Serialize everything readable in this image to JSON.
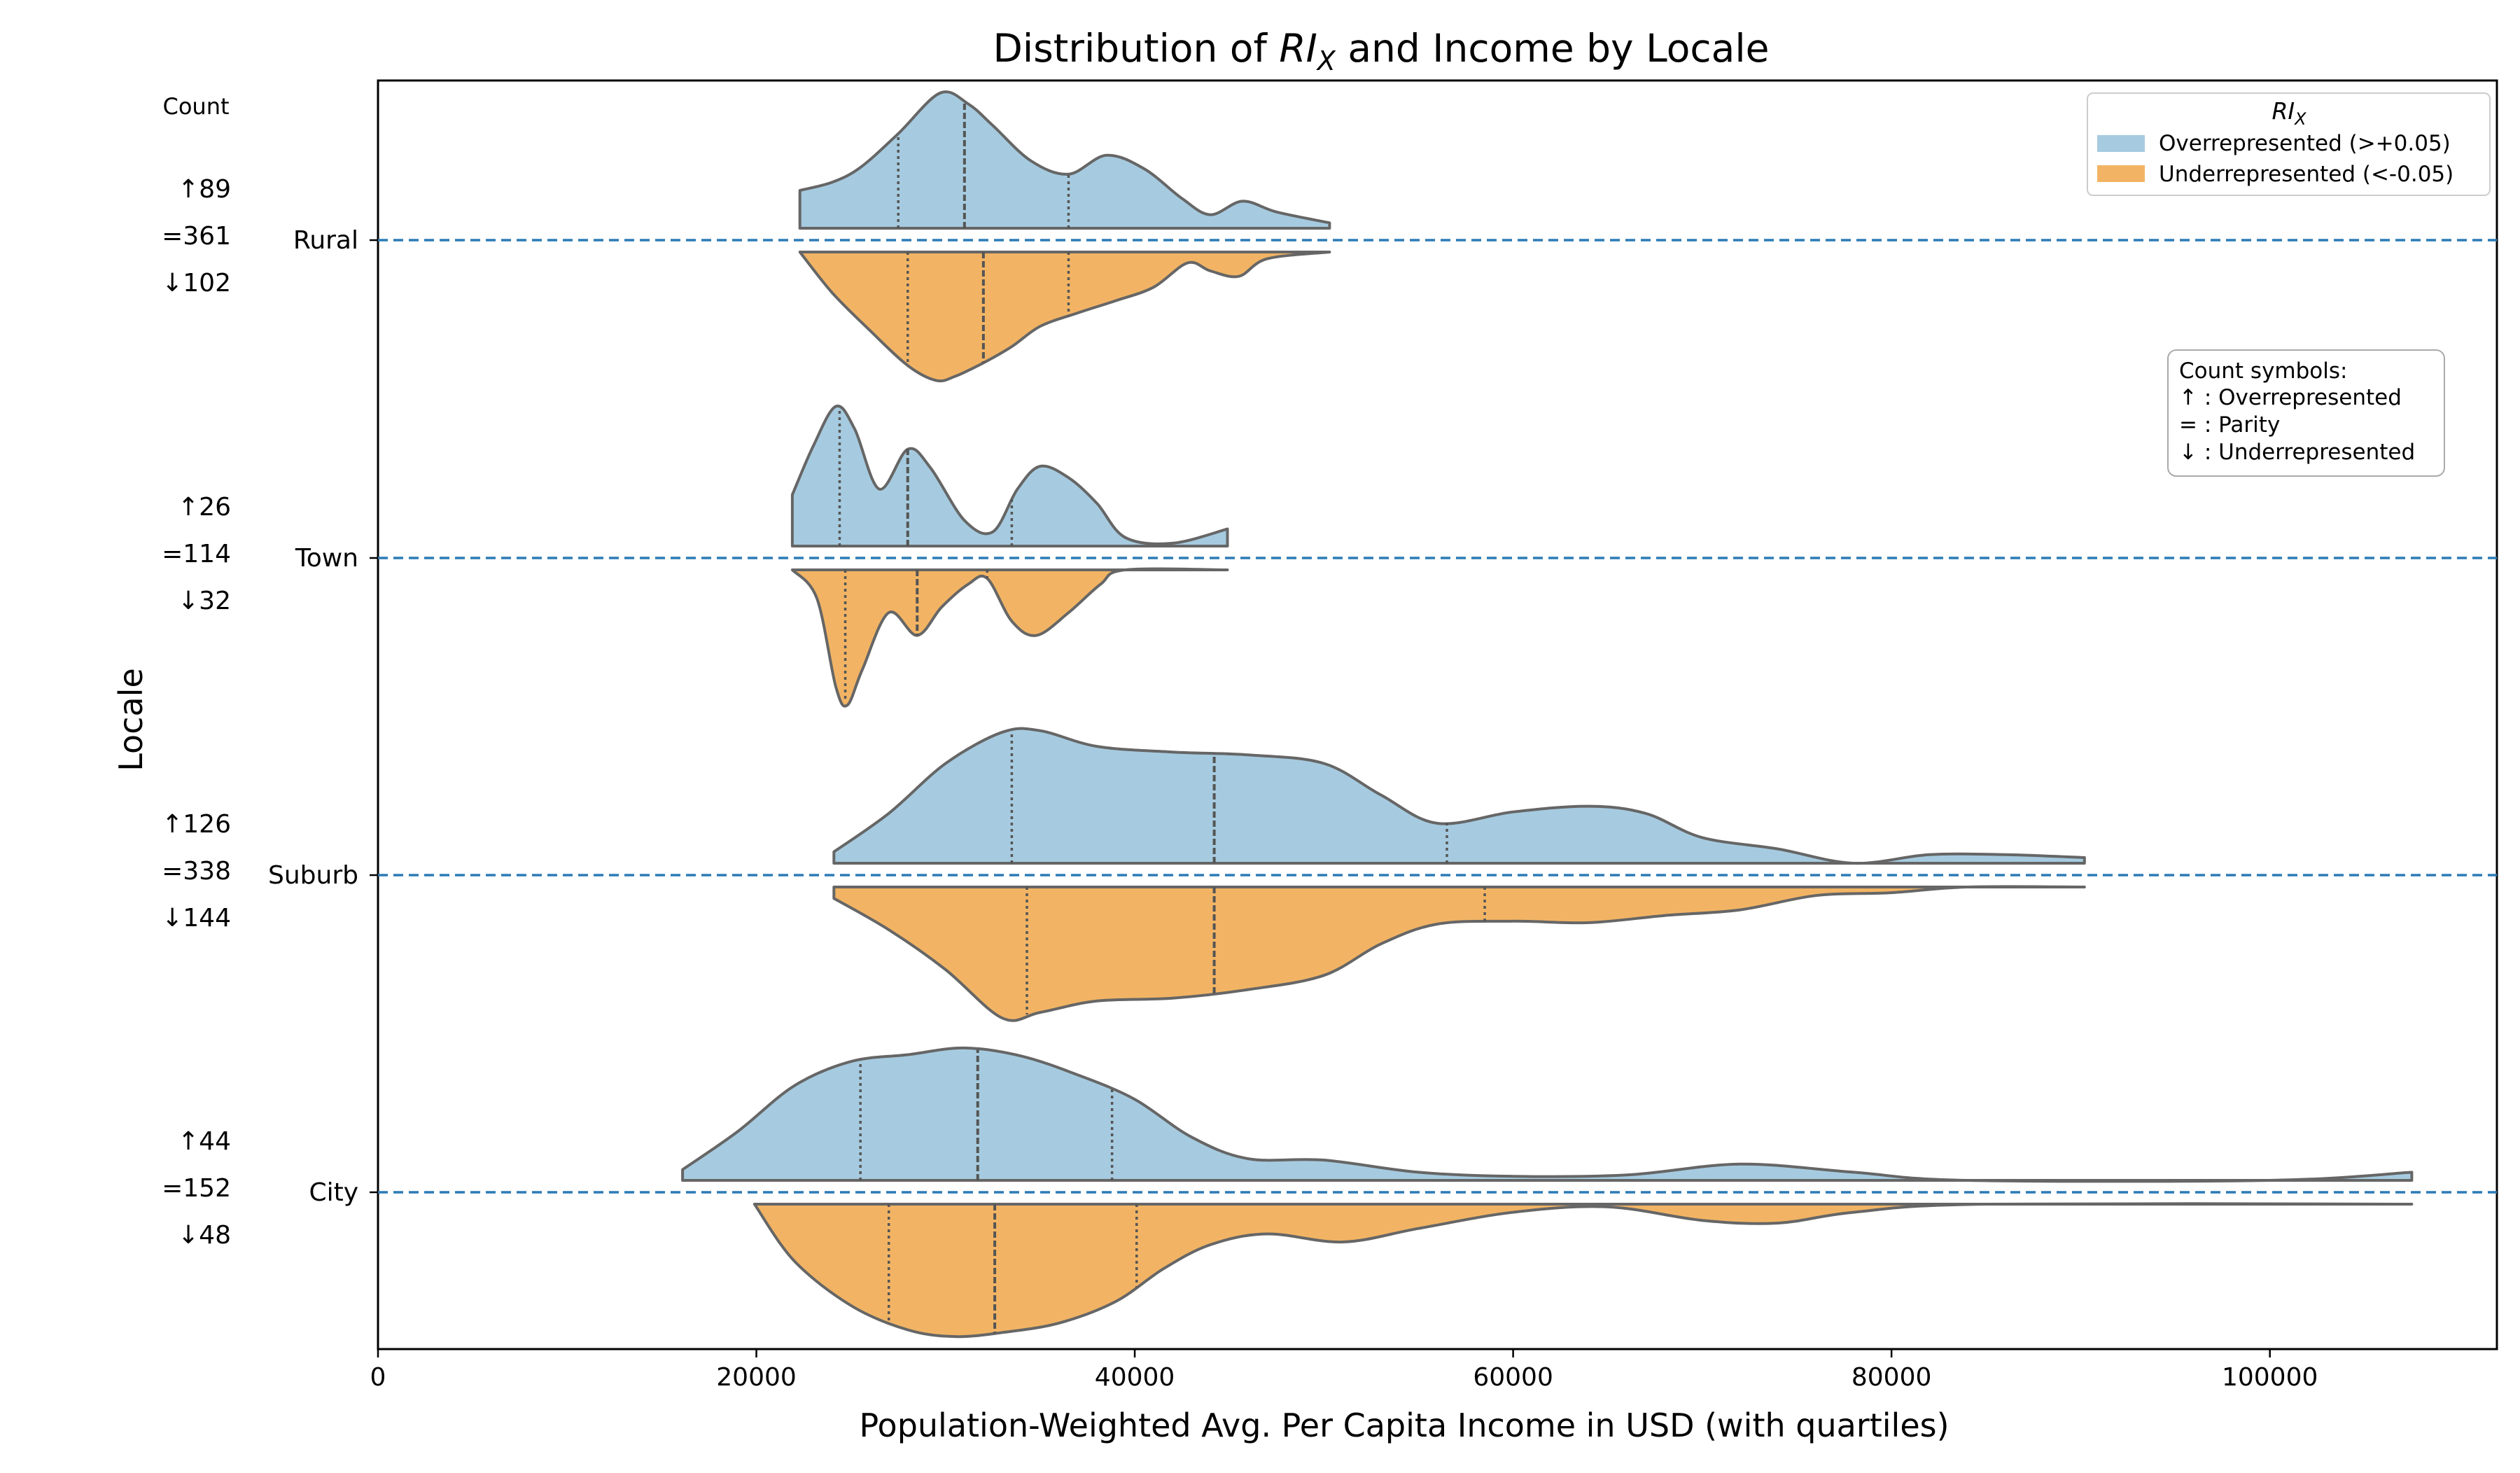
{
  "chart_data": {
    "type": "violin",
    "title_prefix": "Distribution of ",
    "title_symbol": "RI",
    "title_subscript": "X",
    "title_suffix": " and Income by Locale",
    "xlabel": "Population-Weighted Avg. Per Capita Income in USD (with quartiles)",
    "ylabel": "Locale",
    "xlim": [
      0,
      112000
    ],
    "x_ticks": [
      0,
      20000,
      40000,
      60000,
      80000,
      100000
    ],
    "x_tick_labels": [
      "0",
      "20000",
      "40000",
      "60000",
      "80000",
      "100000"
    ],
    "counts_header": "Count",
    "legend": {
      "title_symbol": "RI",
      "title_subscript": "X",
      "placement": "top-right",
      "entries": [
        {
          "label": "Overrepresented (>+0.05)",
          "color": "#a6cbe0"
        },
        {
          "label": "Underrepresented (<-0.05)",
          "color": "#f2b464"
        }
      ]
    },
    "symbol_box": {
      "title": "Count symbols:",
      "lines": [
        "↑ : Overrepresented",
        "= : Parity",
        "↓ : Underrepresented"
      ]
    },
    "reference_line_color": "#2c7bb6",
    "categories": [
      {
        "name": "Rural",
        "counts": {
          "over": "↑89",
          "parity": "=361",
          "under": "↓102"
        },
        "over": {
          "range": [
            22300,
            50300
          ],
          "max_height": 0.55,
          "density": [
            [
              22300,
              0.28
            ],
            [
              24000,
              0.34
            ],
            [
              25500,
              0.45
            ],
            [
              27500,
              0.7
            ],
            [
              29700,
              1.0
            ],
            [
              31200,
              0.92
            ],
            [
              32500,
              0.76
            ],
            [
              34500,
              0.5
            ],
            [
              36500,
              0.4
            ],
            [
              38500,
              0.54
            ],
            [
              40500,
              0.44
            ],
            [
              42500,
              0.22
            ],
            [
              44000,
              0.1
            ],
            [
              45700,
              0.2
            ],
            [
              47500,
              0.12
            ],
            [
              50300,
              0.04
            ]
          ],
          "quartiles": [
            27500,
            31000,
            36500
          ]
        },
        "under": {
          "range": [
            22300,
            50300
          ],
          "max_height": 0.55,
          "density": [
            [
              22300,
              0.0
            ],
            [
              24000,
              0.3
            ],
            [
              26000,
              0.58
            ],
            [
              28000,
              0.84
            ],
            [
              29500,
              0.95
            ],
            [
              30500,
              0.92
            ],
            [
              32000,
              0.82
            ],
            [
              33500,
              0.7
            ],
            [
              35000,
              0.55
            ],
            [
              37000,
              0.45
            ],
            [
              39000,
              0.36
            ],
            [
              41000,
              0.26
            ],
            [
              42800,
              0.08
            ],
            [
              44000,
              0.14
            ],
            [
              45500,
              0.18
            ],
            [
              47000,
              0.05
            ],
            [
              50300,
              0.0
            ]
          ],
          "quartiles": [
            28000,
            32000,
            36500
          ]
        }
      },
      {
        "name": "Town",
        "counts": {
          "over": "↑26",
          "parity": "=114",
          "under": "↓32"
        },
        "over": {
          "range": [
            21900,
            44900
          ],
          "max_height": 0.58,
          "density": [
            [
              21900,
              0.36
            ],
            [
              23000,
              0.7
            ],
            [
              24200,
              0.98
            ],
            [
              25200,
              0.82
            ],
            [
              26500,
              0.4
            ],
            [
              28000,
              0.68
            ],
            [
              29200,
              0.55
            ],
            [
              31000,
              0.18
            ],
            [
              32500,
              0.1
            ],
            [
              33800,
              0.4
            ],
            [
              35000,
              0.56
            ],
            [
              36500,
              0.48
            ],
            [
              38000,
              0.3
            ],
            [
              39500,
              0.06
            ],
            [
              42000,
              0.02
            ],
            [
              44900,
              0.12
            ]
          ],
          "quartiles": [
            24400,
            28000,
            33500
          ]
        },
        "under": {
          "range": [
            21900,
            44900
          ],
          "max_height": 0.58,
          "density": [
            [
              21900,
              0.0
            ],
            [
              23200,
              0.2
            ],
            [
              24200,
              0.82
            ],
            [
              24800,
              0.95
            ],
            [
              25600,
              0.7
            ],
            [
              27000,
              0.3
            ],
            [
              28500,
              0.46
            ],
            [
              29800,
              0.26
            ],
            [
              31200,
              0.1
            ],
            [
              32200,
              0.06
            ],
            [
              33500,
              0.36
            ],
            [
              34800,
              0.46
            ],
            [
              36500,
              0.3
            ],
            [
              38200,
              0.1
            ],
            [
              39500,
              0.0
            ],
            [
              44900,
              0.0
            ]
          ],
          "quartiles": [
            24700,
            28500,
            32200
          ]
        }
      },
      {
        "name": "Suburb",
        "counts": {
          "over": "↑126",
          "parity": "=338",
          "under": "↓144"
        },
        "over": {
          "range": [
            24100,
            90200
          ],
          "max_height": 0.58,
          "density": [
            [
              24100,
              0.08
            ],
            [
              27000,
              0.35
            ],
            [
              30000,
              0.7
            ],
            [
              33000,
              0.92
            ],
            [
              35000,
              0.93
            ],
            [
              38000,
              0.82
            ],
            [
              42000,
              0.78
            ],
            [
              46000,
              0.76
            ],
            [
              50000,
              0.7
            ],
            [
              53000,
              0.48
            ],
            [
              56000,
              0.28
            ],
            [
              60000,
              0.36
            ],
            [
              64000,
              0.4
            ],
            [
              67000,
              0.35
            ],
            [
              70000,
              0.18
            ],
            [
              74000,
              0.1
            ],
            [
              78000,
              0.0
            ],
            [
              82000,
              0.06
            ],
            [
              86000,
              0.06
            ],
            [
              90200,
              0.04
            ]
          ],
          "quartiles": [
            33500,
            44200,
            56500
          ]
        },
        "under": {
          "range": [
            24100,
            90200
          ],
          "max_height": 0.58,
          "density": [
            [
              24100,
              0.08
            ],
            [
              27000,
              0.3
            ],
            [
              30000,
              0.58
            ],
            [
              33000,
              0.92
            ],
            [
              35000,
              0.88
            ],
            [
              38000,
              0.8
            ],
            [
              42000,
              0.78
            ],
            [
              46000,
              0.72
            ],
            [
              50000,
              0.62
            ],
            [
              53000,
              0.4
            ],
            [
              56000,
              0.26
            ],
            [
              60000,
              0.24
            ],
            [
              64000,
              0.25
            ],
            [
              68000,
              0.2
            ],
            [
              72000,
              0.16
            ],
            [
              76000,
              0.06
            ],
            [
              80000,
              0.04
            ],
            [
              84000,
              0.0
            ],
            [
              90200,
              0.0
            ]
          ],
          "quartiles": [
            34300,
            44200,
            58500
          ]
        }
      },
      {
        "name": "City",
        "counts": {
          "over": "↑44",
          "parity": "=152",
          "under": "↓48"
        },
        "over": {
          "range": [
            16100,
            107500
          ],
          "max_height": 0.55,
          "density": [
            [
              16100,
              0.08
            ],
            [
              19000,
              0.36
            ],
            [
              22000,
              0.7
            ],
            [
              25000,
              0.88
            ],
            [
              28000,
              0.93
            ],
            [
              31000,
              0.98
            ],
            [
              34000,
              0.92
            ],
            [
              37000,
              0.78
            ],
            [
              40000,
              0.6
            ],
            [
              43000,
              0.32
            ],
            [
              46000,
              0.16
            ],
            [
              50000,
              0.15
            ],
            [
              55000,
              0.06
            ],
            [
              60000,
              0.03
            ],
            [
              66000,
              0.04
            ],
            [
              72000,
              0.12
            ],
            [
              78000,
              0.06
            ],
            [
              84000,
              0.0
            ],
            [
              100000,
              0.0
            ],
            [
              107500,
              0.06
            ]
          ],
          "quartiles": [
            25500,
            31700,
            38800
          ]
        },
        "under": {
          "range": [
            19900,
            107500
          ],
          "max_height": 0.55,
          "density": [
            [
              19900,
              0.0
            ],
            [
              22000,
              0.42
            ],
            [
              25000,
              0.75
            ],
            [
              28000,
              0.93
            ],
            [
              30500,
              0.98
            ],
            [
              33000,
              0.95
            ],
            [
              36000,
              0.88
            ],
            [
              39000,
              0.72
            ],
            [
              41500,
              0.48
            ],
            [
              44000,
              0.3
            ],
            [
              47000,
              0.22
            ],
            [
              51000,
              0.28
            ],
            [
              55000,
              0.18
            ],
            [
              60000,
              0.06
            ],
            [
              65000,
              0.02
            ],
            [
              70000,
              0.12
            ],
            [
              74000,
              0.14
            ],
            [
              78000,
              0.06
            ],
            [
              85000,
              0.0
            ],
            [
              107500,
              0.0
            ]
          ],
          "quartiles": [
            27000,
            32600,
            40100
          ]
        }
      }
    ]
  }
}
